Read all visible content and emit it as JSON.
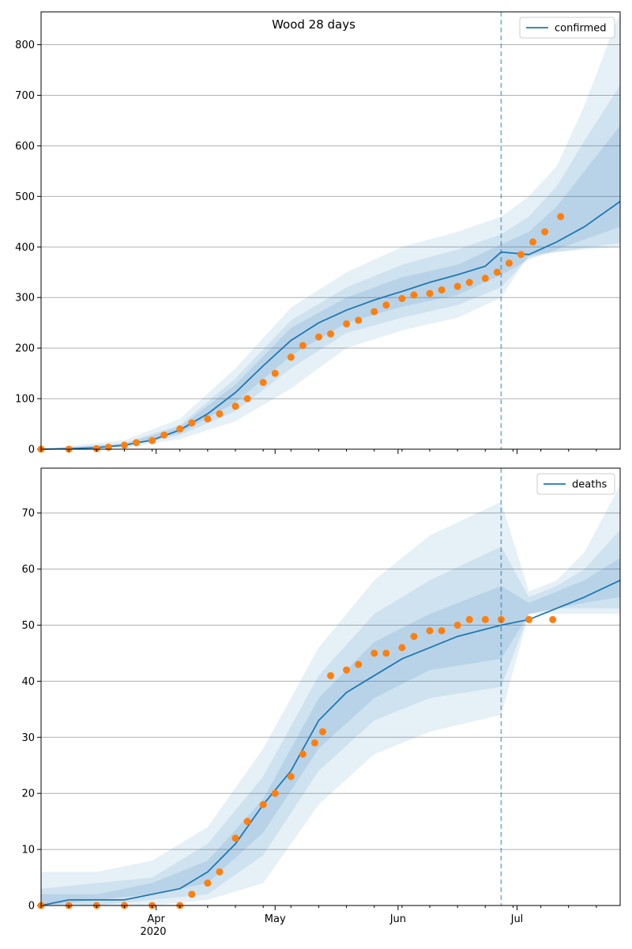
{
  "figure": {
    "title": "Wood 28 days",
    "year_label": "2020",
    "x_tick_labels": [
      "Apr",
      "May",
      "Jun",
      "Jul"
    ]
  },
  "chart_data": [
    {
      "type": "line",
      "name": "confirmed",
      "legend_label": "confirmed",
      "legend_position": "upper right",
      "grid": "horizontal",
      "xlim": [
        "2020-03-03",
        "2020-07-27"
      ],
      "ylim": [
        0,
        865
      ],
      "yticks": [
        0,
        100,
        200,
        300,
        400,
        500,
        600,
        700,
        800
      ],
      "forecast_start": "2020-06-27",
      "colors": {
        "model": "#1f77b4",
        "observed": "#ff7f0e",
        "band": "#1f77b4",
        "vline": "#1f77b4"
      },
      "model_line": {
        "x": [
          "2020-03-03",
          "2020-03-10",
          "2020-03-17",
          "2020-03-24",
          "2020-03-31",
          "2020-04-07",
          "2020-04-14",
          "2020-04-21",
          "2020-04-28",
          "2020-05-05",
          "2020-05-12",
          "2020-05-19",
          "2020-05-26",
          "2020-06-02",
          "2020-06-09",
          "2020-06-16",
          "2020-06-23",
          "2020-06-27",
          "2020-07-04",
          "2020-07-11",
          "2020-07-18",
          "2020-07-27"
        ],
        "y": [
          0,
          1,
          3,
          8,
          18,
          38,
          70,
          112,
          165,
          215,
          250,
          275,
          295,
          312,
          330,
          345,
          362,
          390,
          385,
          410,
          440,
          490
        ]
      },
      "bands": [
        {
          "label": "outer",
          "x": [
            "2020-03-03",
            "2020-03-24",
            "2020-04-07",
            "2020-04-21",
            "2020-05-05",
            "2020-05-19",
            "2020-06-02",
            "2020-06-16",
            "2020-06-27",
            "2020-07-04",
            "2020-07-11",
            "2020-07-18",
            "2020-07-27"
          ],
          "lower": [
            0,
            3,
            20,
            55,
            120,
            200,
            235,
            260,
            300,
            385,
            390,
            395,
            400
          ],
          "upper": [
            0,
            18,
            60,
            160,
            280,
            350,
            400,
            430,
            460,
            500,
            560,
            680,
            865
          ]
        },
        {
          "label": "middle",
          "x": [
            "2020-03-03",
            "2020-03-24",
            "2020-04-07",
            "2020-04-21",
            "2020-05-05",
            "2020-05-19",
            "2020-06-02",
            "2020-06-16",
            "2020-06-27",
            "2020-07-04",
            "2020-07-11",
            "2020-07-18",
            "2020-07-27"
          ],
          "lower": [
            0,
            5,
            28,
            75,
            160,
            230,
            260,
            285,
            320,
            380,
            390,
            398,
            408
          ],
          "upper": [
            0,
            12,
            48,
            140,
            255,
            320,
            365,
            395,
            425,
            460,
            520,
            610,
            720
          ]
        },
        {
          "label": "inner",
          "x": [
            "2020-03-03",
            "2020-03-24",
            "2020-04-07",
            "2020-04-21",
            "2020-05-05",
            "2020-05-19",
            "2020-06-02",
            "2020-06-16",
            "2020-06-27",
            "2020-07-04",
            "2020-07-11",
            "2020-07-18",
            "2020-07-27"
          ],
          "lower": [
            0,
            6,
            32,
            92,
            185,
            250,
            282,
            305,
            345,
            375,
            395,
            415,
            440
          ],
          "upper": [
            0,
            10,
            44,
            128,
            240,
            300,
            340,
            365,
            405,
            430,
            480,
            550,
            640
          ]
        }
      ],
      "observed": {
        "x": [
          "2020-03-03",
          "2020-03-10",
          "2020-03-17",
          "2020-03-20",
          "2020-03-24",
          "2020-03-27",
          "2020-03-31",
          "2020-04-03",
          "2020-04-07",
          "2020-04-10",
          "2020-04-14",
          "2020-04-17",
          "2020-04-21",
          "2020-04-24",
          "2020-04-28",
          "2020-05-01",
          "2020-05-05",
          "2020-05-08",
          "2020-05-12",
          "2020-05-15",
          "2020-05-19",
          "2020-05-22",
          "2020-05-26",
          "2020-05-29",
          "2020-06-02",
          "2020-06-05",
          "2020-06-09",
          "2020-06-12",
          "2020-06-16",
          "2020-06-19",
          "2020-06-23",
          "2020-06-26",
          "2020-06-29",
          "2020-07-02",
          "2020-07-05",
          "2020-07-08",
          "2020-07-12"
        ],
        "y": [
          0,
          0,
          1,
          4,
          8,
          13,
          17,
          28,
          40,
          52,
          60,
          70,
          85,
          100,
          132,
          150,
          182,
          205,
          222,
          228,
          248,
          255,
          272,
          285,
          298,
          305,
          308,
          315,
          322,
          330,
          338,
          350,
          368,
          385,
          410,
          430,
          460
        ]
      }
    },
    {
      "type": "line",
      "name": "deaths",
      "legend_label": "deaths",
      "legend_position": "upper right",
      "grid": "horizontal",
      "xlim": [
        "2020-03-03",
        "2020-07-27"
      ],
      "ylim": [
        0,
        78
      ],
      "yticks": [
        0,
        10,
        20,
        30,
        40,
        50,
        60,
        70
      ],
      "forecast_start": "2020-06-27",
      "colors": {
        "model": "#1f77b4",
        "observed": "#ff7f0e",
        "band": "#1f77b4",
        "vline": "#1f77b4"
      },
      "model_line": {
        "x": [
          "2020-03-03",
          "2020-03-10",
          "2020-03-24",
          "2020-04-07",
          "2020-04-14",
          "2020-04-21",
          "2020-04-28",
          "2020-05-05",
          "2020-05-12",
          "2020-05-19",
          "2020-05-26",
          "2020-06-02",
          "2020-06-09",
          "2020-06-16",
          "2020-06-27",
          "2020-07-04",
          "2020-07-11",
          "2020-07-18",
          "2020-07-27"
        ],
        "y": [
          0,
          1,
          1,
          3,
          6,
          11,
          18,
          24,
          33,
          38,
          41,
          44,
          46,
          48,
          50,
          51,
          53,
          55,
          58
        ]
      },
      "bands": [
        {
          "label": "outer",
          "x": [
            "2020-03-03",
            "2020-03-17",
            "2020-03-31",
            "2020-04-14",
            "2020-04-28",
            "2020-05-12",
            "2020-05-26",
            "2020-06-09",
            "2020-06-27",
            "2020-07-04",
            "2020-07-11",
            "2020-07-18",
            "2020-07-27"
          ],
          "lower": [
            0,
            0,
            0,
            1,
            4,
            18,
            27,
            31,
            34,
            52,
            52,
            52,
            52
          ],
          "upper": [
            6,
            6,
            8,
            14,
            28,
            46,
            58,
            66,
            72,
            56,
            58,
            63,
            75
          ]
        },
        {
          "label": "middle",
          "x": [
            "2020-03-03",
            "2020-03-17",
            "2020-03-31",
            "2020-04-14",
            "2020-04-28",
            "2020-05-12",
            "2020-05-26",
            "2020-06-09",
            "2020-06-27",
            "2020-07-04",
            "2020-07-11",
            "2020-07-18",
            "2020-07-27"
          ],
          "lower": [
            0,
            0,
            1,
            2,
            9,
            24,
            33,
            37,
            39,
            52,
            53,
            53,
            53
          ],
          "upper": [
            3,
            4,
            5,
            11,
            23,
            41,
            52,
            58,
            64,
            55,
            57,
            60,
            67
          ]
        },
        {
          "label": "inner",
          "x": [
            "2020-03-03",
            "2020-03-17",
            "2020-03-31",
            "2020-04-14",
            "2020-04-28",
            "2020-05-12",
            "2020-05-26",
            "2020-06-09",
            "2020-06-27",
            "2020-07-04",
            "2020-07-11",
            "2020-07-18",
            "2020-07-27"
          ],
          "lower": [
            0,
            1,
            2,
            4,
            13,
            28,
            37,
            42,
            44,
            52,
            53,
            54,
            55
          ],
          "upper": [
            2,
            2,
            4,
            8,
            19,
            37,
            47,
            52,
            57,
            54,
            56,
            58,
            62
          ]
        }
      ],
      "observed": {
        "x": [
          "2020-03-03",
          "2020-03-10",
          "2020-03-17",
          "2020-03-24",
          "2020-03-31",
          "2020-04-07",
          "2020-04-10",
          "2020-04-14",
          "2020-04-17",
          "2020-04-21",
          "2020-04-24",
          "2020-04-28",
          "2020-05-01",
          "2020-05-05",
          "2020-05-08",
          "2020-05-11",
          "2020-05-13",
          "2020-05-15",
          "2020-05-19",
          "2020-05-22",
          "2020-05-26",
          "2020-05-29",
          "2020-06-02",
          "2020-06-05",
          "2020-06-09",
          "2020-06-12",
          "2020-06-16",
          "2020-06-19",
          "2020-06-23",
          "2020-06-27",
          "2020-07-04",
          "2020-07-10"
        ],
        "y": [
          0,
          0,
          0,
          0,
          0,
          0,
          2,
          4,
          6,
          12,
          15,
          18,
          20,
          23,
          27,
          29,
          31,
          41,
          42,
          43,
          45,
          45,
          46,
          48,
          49,
          49,
          50,
          51,
          51,
          51,
          51,
          51
        ]
      }
    }
  ]
}
